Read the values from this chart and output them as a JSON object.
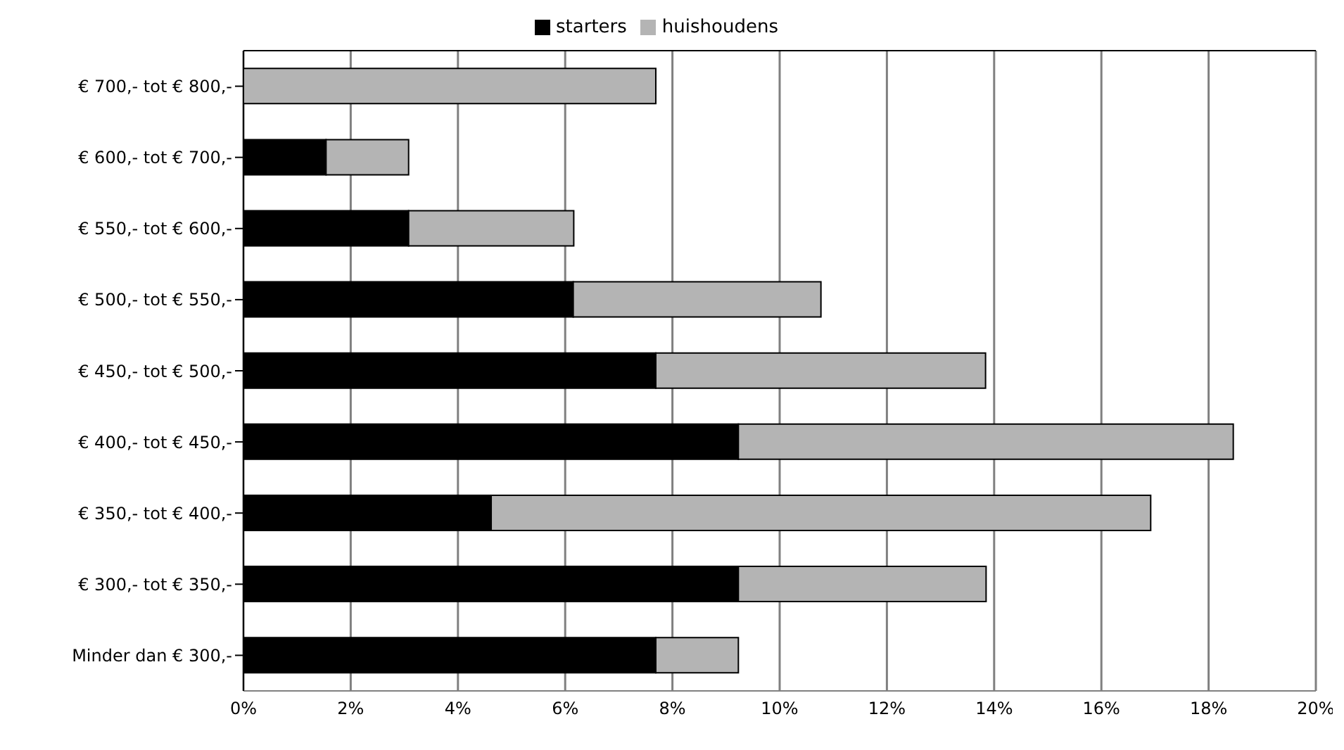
{
  "chart_data": {
    "type": "bar",
    "orientation": "horizontal",
    "stacked": true,
    "categories": [
      "€ 700,- tot € 800,-",
      "€ 600,- tot € 700,-",
      "€ 550,- tot € 600,-",
      "€ 500,- tot € 550,-",
      "€ 450,- tot € 500,-",
      "€ 400,- tot € 450,-",
      "€ 350,- tot € 400,-",
      "€ 300,- tot € 350,-",
      "Minder dan € 300,-"
    ],
    "series": [
      {
        "name": "starters",
        "color": "#000000",
        "values": [
          0,
          1.54,
          3.08,
          6.15,
          7.69,
          9.23,
          4.62,
          9.23,
          7.69
        ]
      },
      {
        "name": "huishoudens",
        "color": "#b4b4b4",
        "values": [
          7.69,
          1.54,
          3.08,
          4.62,
          6.15,
          9.23,
          12.3,
          4.62,
          1.54
        ]
      }
    ],
    "xlim": [
      0,
      20
    ],
    "xticks": [
      {
        "value": 0,
        "label": "0%"
      },
      {
        "value": 2,
        "label": "2%"
      },
      {
        "value": 4,
        "label": "4%"
      },
      {
        "value": 6,
        "label": "6%"
      },
      {
        "value": 8,
        "label": "8%"
      },
      {
        "value": 10,
        "label": "10%"
      },
      {
        "value": 12,
        "label": "12%"
      },
      {
        "value": 14,
        "label": "14%"
      },
      {
        "value": 16,
        "label": "16%"
      },
      {
        "value": 18,
        "label": "18%"
      },
      {
        "value": 20,
        "label": "20%"
      }
    ],
    "grid": "x",
    "legend": "top"
  }
}
